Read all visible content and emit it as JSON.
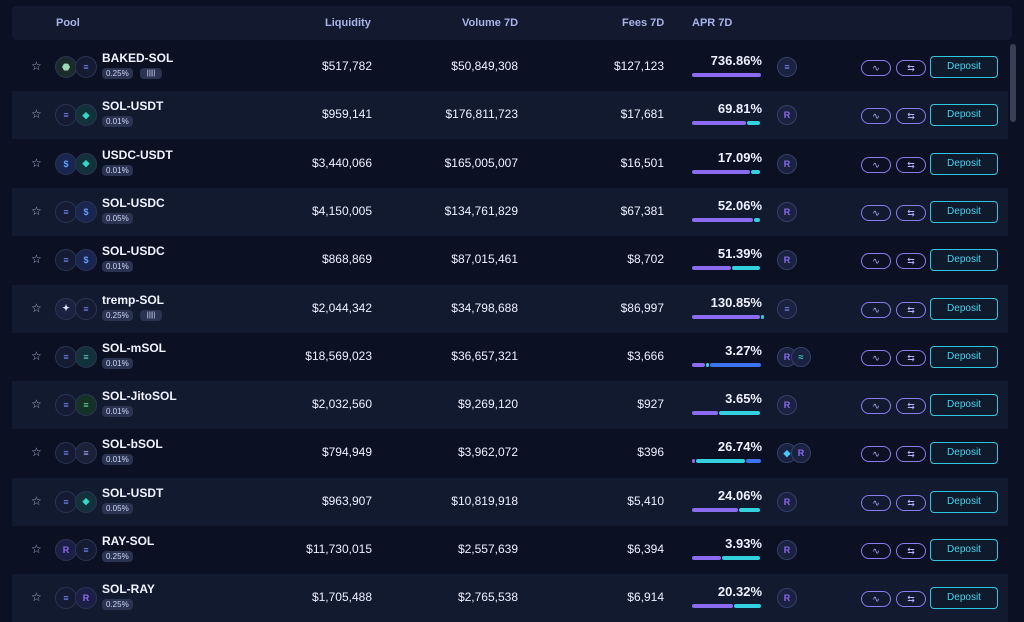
{
  "colors": {
    "purple": "#8b6cf0",
    "cyan": "#33d1de",
    "blue": "#3b73f0"
  },
  "header": {
    "pool": "Pool",
    "liquidity": "Liquidity",
    "volume": "Volume 7D",
    "fees": "Fees 7D",
    "apr": "APR 7D"
  },
  "actions": {
    "chart_icon": "∿",
    "swap_icon": "⇆",
    "deposit": "Deposit"
  },
  "rows": [
    {
      "name": "BAKED-SOL",
      "fee": "0.25%",
      "liq": "$517,782",
      "vol": "$50,849,308",
      "fees": "$127,123",
      "apr": "736.86%",
      "apr_split": [
        1.0,
        0.0,
        0.0
      ]
    },
    {
      "name": "SOL-USDT",
      "fee": "0.01%",
      "liq": "$959,141",
      "vol": "$176,811,723",
      "fees": "$17,681",
      "apr": "69.81%",
      "apr_split": [
        0.78,
        0.2,
        0.0
      ]
    },
    {
      "name": "USDC-USDT",
      "fee": "0.01%",
      "liq": "$3,440,066",
      "vol": "$165,005,007",
      "fees": "$16,501",
      "apr": "17.09%",
      "apr_split": [
        0.84,
        0.14,
        0.0
      ]
    },
    {
      "name": "SOL-USDC",
      "fee": "0.05%",
      "liq": "$4,150,005",
      "vol": "$134,761,829",
      "fees": "$67,381",
      "apr": "52.06%",
      "apr_split": [
        0.89,
        0.09,
        0.0
      ]
    },
    {
      "name": "SOL-USDC",
      "fee": "0.01%",
      "liq": "$868,869",
      "vol": "$87,015,461",
      "fees": "$8,702",
      "apr": "51.39%",
      "apr_split": [
        0.57,
        0.41,
        0.0
      ]
    },
    {
      "name": "tremp-SOL",
      "fee": "0.25%",
      "liq": "$2,044,342",
      "vol": "$34,798,688",
      "fees": "$86,997",
      "apr": "130.85%",
      "apr_split": [
        0.98,
        0.02,
        0.0
      ]
    },
    {
      "name": "SOL-mSOL",
      "fee": "0.01%",
      "liq": "$18,569,023",
      "vol": "$36,657,321",
      "fees": "$3,666",
      "apr": "3.27%",
      "apr_split": [
        0.2,
        0.05,
        0.75
      ]
    },
    {
      "name": "SOL-JitoSOL",
      "fee": "0.01%",
      "liq": "$2,032,560",
      "vol": "$9,269,120",
      "fees": "$927",
      "apr": "3.65%",
      "apr_split": [
        0.38,
        0.6,
        0.0
      ]
    },
    {
      "name": "SOL-bSOL",
      "fee": "0.01%",
      "liq": "$794,949",
      "vol": "$3,962,072",
      "fees": "$396",
      "apr": "26.74%",
      "apr_split": [
        0.05,
        0.72,
        0.23
      ]
    },
    {
      "name": "SOL-USDT",
      "fee": "0.05%",
      "liq": "$963,907",
      "vol": "$10,819,918",
      "fees": "$5,410",
      "apr": "24.06%",
      "apr_split": [
        0.67,
        0.31,
        0.0
      ]
    },
    {
      "name": "RAY-SOL",
      "fee": "0.25%",
      "liq": "$11,730,015",
      "vol": "$2,557,639",
      "fees": "$6,394",
      "apr": "3.93%",
      "apr_split": [
        0.43,
        0.55,
        0.0
      ]
    },
    {
      "name": "SOL-RAY",
      "fee": "0.25%",
      "liq": "$1,705,488",
      "vol": "$2,765,538",
      "fees": "$6,914",
      "apr": "20.32%",
      "apr_split": [
        0.6,
        0.4,
        0.0
      ]
    }
  ]
}
